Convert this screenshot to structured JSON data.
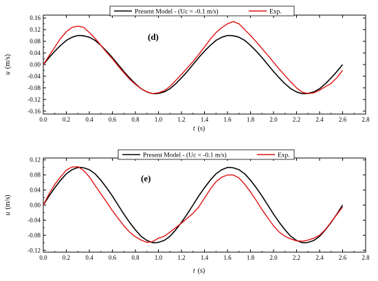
{
  "chart_data": [
    {
      "type": "line",
      "panel_label": "(d)",
      "xlabel": "t",
      "xlabel_unit": "(s)",
      "ylabel": "u",
      "ylabel_unit": "(m/s)",
      "xlim": [
        0.0,
        2.8
      ],
      "ylim": [
        -0.17,
        0.17
      ],
      "x_ticks": [
        "0.0",
        "0.2",
        "0.4",
        "0.6",
        "0.8",
        "1.0",
        "1.2",
        "1.4",
        "1.6",
        "1.8",
        "2.0",
        "2.2",
        "2.4",
        "2.6",
        "2.8"
      ],
      "y_ticks": [
        "-0.16",
        "-0.12",
        "-0.08",
        "-0.04",
        "0.00",
        "0.04",
        "0.08",
        "0.12",
        "0.16"
      ],
      "legend_position": "top",
      "series": [
        {
          "name": "Present Model - (Uc = -0.1 m/s)",
          "color": "#000000",
          "x": [
            0.0,
            0.05,
            0.1,
            0.15,
            0.2,
            0.25,
            0.3,
            0.325,
            0.35,
            0.4,
            0.45,
            0.5,
            0.55,
            0.6,
            0.65,
            0.7,
            0.75,
            0.8,
            0.85,
            0.9,
            0.95,
            0.975,
            1.0,
            1.05,
            1.1,
            1.15,
            1.2,
            1.25,
            1.3,
            1.35,
            1.4,
            1.45,
            1.5,
            1.55,
            1.6,
            1.625,
            1.65,
            1.7,
            1.75,
            1.8,
            1.85,
            1.9,
            1.95,
            2.0,
            2.05,
            2.1,
            2.15,
            2.2,
            2.25,
            2.275,
            2.3,
            2.35,
            2.4,
            2.45,
            2.5,
            2.55,
            2.6
          ],
          "y": [
            0.0,
            0.024,
            0.046,
            0.066,
            0.083,
            0.094,
            0.1,
            0.1,
            0.099,
            0.094,
            0.083,
            0.066,
            0.046,
            0.024,
            0.0,
            -0.024,
            -0.046,
            -0.066,
            -0.083,
            -0.094,
            -0.1,
            -0.1,
            -0.099,
            -0.094,
            -0.083,
            -0.066,
            -0.046,
            -0.024,
            0.0,
            0.024,
            0.046,
            0.066,
            0.083,
            0.094,
            0.1,
            0.1,
            0.099,
            0.094,
            0.083,
            0.066,
            0.046,
            0.024,
            0.0,
            -0.024,
            -0.046,
            -0.066,
            -0.083,
            -0.094,
            -0.1,
            -0.1,
            -0.099,
            -0.094,
            -0.083,
            -0.066,
            -0.046,
            -0.024,
            0.0
          ]
        },
        {
          "name": "Exp.",
          "color": "#e01010",
          "x": [
            0.0,
            0.05,
            0.1,
            0.15,
            0.2,
            0.25,
            0.3,
            0.35,
            0.4,
            0.45,
            0.5,
            0.55,
            0.6,
            0.65,
            0.7,
            0.75,
            0.8,
            0.85,
            0.9,
            0.95,
            1.0,
            1.05,
            1.1,
            1.15,
            1.2,
            1.25,
            1.3,
            1.35,
            1.4,
            1.45,
            1.5,
            1.55,
            1.6,
            1.65,
            1.7,
            1.75,
            1.8,
            1.85,
            1.9,
            1.95,
            2.0,
            2.05,
            2.1,
            2.15,
            2.2,
            2.25,
            2.3,
            2.35,
            2.4,
            2.45,
            2.5,
            2.55,
            2.6
          ],
          "y": [
            0.0,
            0.03,
            0.06,
            0.09,
            0.113,
            0.128,
            0.132,
            0.128,
            0.11,
            0.09,
            0.066,
            0.042,
            0.02,
            -0.005,
            -0.028,
            -0.05,
            -0.068,
            -0.083,
            -0.094,
            -0.1,
            -0.097,
            -0.09,
            -0.075,
            -0.055,
            -0.034,
            -0.012,
            0.01,
            0.035,
            0.06,
            0.087,
            0.11,
            0.127,
            0.14,
            0.148,
            0.14,
            0.12,
            0.1,
            0.078,
            0.055,
            0.032,
            0.008,
            -0.016,
            -0.038,
            -0.06,
            -0.08,
            -0.095,
            -0.1,
            -0.097,
            -0.088,
            -0.076,
            -0.065,
            -0.045,
            -0.02
          ]
        }
      ]
    },
    {
      "type": "line",
      "panel_label": "(e)",
      "xlabel": "t",
      "xlabel_unit": "(s)",
      "ylabel": "u",
      "ylabel_unit": "(m/s)",
      "xlim": [
        0.0,
        2.8
      ],
      "ylim": [
        -0.125,
        0.125
      ],
      "x_ticks": [
        "0.0",
        "0.2",
        "0.4",
        "0.6",
        "0.8",
        "1.0",
        "1.2",
        "1.4",
        "1.6",
        "1.8",
        "2.0",
        "2.2",
        "2.4",
        "2.6",
        "2.8"
      ],
      "y_ticks": [
        "-0.12",
        "-0.08",
        "-0.04",
        "0.00",
        "0.04",
        "0.08",
        "0.12"
      ],
      "legend_position": "top",
      "series": [
        {
          "name": "Present Model - (Uc = -0.1 m/s)",
          "color": "#000000",
          "x": [
            0.0,
            0.05,
            0.1,
            0.15,
            0.2,
            0.25,
            0.3,
            0.325,
            0.35,
            0.4,
            0.45,
            0.5,
            0.55,
            0.6,
            0.65,
            0.7,
            0.75,
            0.8,
            0.85,
            0.9,
            0.95,
            0.975,
            1.0,
            1.05,
            1.1,
            1.15,
            1.2,
            1.25,
            1.3,
            1.35,
            1.4,
            1.45,
            1.5,
            1.55,
            1.6,
            1.625,
            1.65,
            1.7,
            1.75,
            1.8,
            1.85,
            1.9,
            1.95,
            2.0,
            2.05,
            2.1,
            2.15,
            2.2,
            2.25,
            2.275,
            2.3,
            2.35,
            2.4,
            2.45,
            2.5,
            2.55,
            2.6
          ],
          "y": [
            0.0,
            0.024,
            0.046,
            0.066,
            0.083,
            0.094,
            0.1,
            0.1,
            0.099,
            0.094,
            0.083,
            0.066,
            0.046,
            0.024,
            0.0,
            -0.024,
            -0.046,
            -0.066,
            -0.083,
            -0.094,
            -0.1,
            -0.1,
            -0.099,
            -0.094,
            -0.083,
            -0.066,
            -0.046,
            -0.024,
            0.0,
            0.024,
            0.046,
            0.066,
            0.083,
            0.094,
            0.1,
            0.1,
            0.099,
            0.094,
            0.083,
            0.066,
            0.046,
            0.024,
            0.0,
            -0.024,
            -0.046,
            -0.066,
            -0.083,
            -0.094,
            -0.1,
            -0.1,
            -0.099,
            -0.094,
            -0.083,
            -0.066,
            -0.046,
            -0.024,
            0.0
          ]
        },
        {
          "name": "Exp.",
          "color": "#e01010",
          "x": [
            0.0,
            0.05,
            0.1,
            0.15,
            0.2,
            0.25,
            0.3,
            0.35,
            0.4,
            0.45,
            0.5,
            0.55,
            0.6,
            0.65,
            0.7,
            0.75,
            0.8,
            0.85,
            0.9,
            0.95,
            1.0,
            1.05,
            1.1,
            1.15,
            1.2,
            1.25,
            1.3,
            1.35,
            1.4,
            1.45,
            1.5,
            1.55,
            1.6,
            1.65,
            1.7,
            1.75,
            1.8,
            1.85,
            1.9,
            1.95,
            2.0,
            2.05,
            2.1,
            2.15,
            2.2,
            2.25,
            2.3,
            2.35,
            2.4,
            2.45,
            2.5,
            2.55,
            2.6
          ],
          "y": [
            0.0,
            0.03,
            0.055,
            0.075,
            0.093,
            0.101,
            0.102,
            0.092,
            0.075,
            0.052,
            0.03,
            0.008,
            -0.015,
            -0.035,
            -0.055,
            -0.072,
            -0.084,
            -0.093,
            -0.099,
            -0.097,
            -0.088,
            -0.083,
            -0.072,
            -0.06,
            -0.048,
            -0.035,
            -0.022,
            -0.005,
            0.018,
            0.042,
            0.062,
            0.074,
            0.08,
            0.08,
            0.072,
            0.055,
            0.035,
            0.012,
            -0.012,
            -0.034,
            -0.055,
            -0.072,
            -0.083,
            -0.09,
            -0.095,
            -0.096,
            -0.093,
            -0.088,
            -0.08,
            -0.065,
            -0.045,
            -0.025,
            -0.005
          ]
        }
      ]
    }
  ]
}
